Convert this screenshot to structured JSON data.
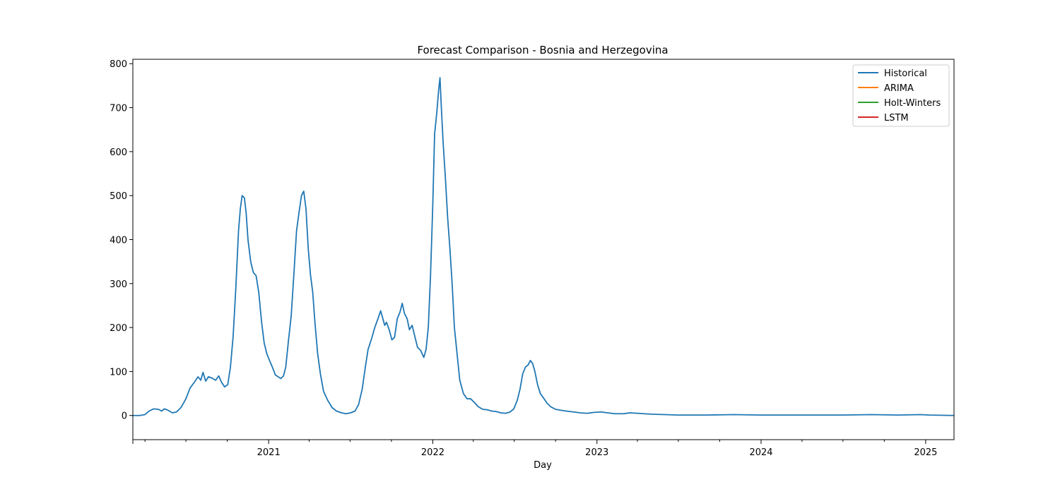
{
  "chart_data": {
    "type": "line",
    "title": "Forecast Comparison - Bosnia and Herzegovina",
    "xlabel": "Day",
    "ylabel": "",
    "x_range": [
      "2020-03-05",
      "2025-03-05"
    ],
    "ylim": [
      -55,
      810
    ],
    "x_ticks": [
      {
        "date": "2021-01-01",
        "label": "2021"
      },
      {
        "date": "2022-01-01",
        "label": "2022"
      },
      {
        "date": "2023-01-01",
        "label": "2023"
      },
      {
        "date": "2024-01-01",
        "label": "2024"
      },
      {
        "date": "2025-01-01",
        "label": "2025"
      }
    ],
    "y_ticks": [
      0,
      100,
      200,
      300,
      400,
      500,
      600,
      700,
      800
    ],
    "grid": false,
    "legend_position": "top-right",
    "series": [
      {
        "name": "Historical",
        "color": "#1f77b4",
        "points": [
          [
            "2020-03-05",
            0
          ],
          [
            "2020-03-20",
            0
          ],
          [
            "2020-04-01",
            2
          ],
          [
            "2020-04-10",
            10
          ],
          [
            "2020-04-20",
            15
          ],
          [
            "2020-05-01",
            14
          ],
          [
            "2020-05-08",
            10
          ],
          [
            "2020-05-14",
            15
          ],
          [
            "2020-05-20",
            13
          ],
          [
            "2020-06-01",
            6
          ],
          [
            "2020-06-10",
            8
          ],
          [
            "2020-06-20",
            18
          ],
          [
            "2020-07-01",
            38
          ],
          [
            "2020-07-10",
            62
          ],
          [
            "2020-07-20",
            76
          ],
          [
            "2020-07-28",
            88
          ],
          [
            "2020-08-03",
            80
          ],
          [
            "2020-08-08",
            98
          ],
          [
            "2020-08-14",
            78
          ],
          [
            "2020-08-20",
            88
          ],
          [
            "2020-08-28",
            85
          ],
          [
            "2020-09-05",
            80
          ],
          [
            "2020-09-12",
            90
          ],
          [
            "2020-09-18",
            76
          ],
          [
            "2020-09-25",
            65
          ],
          [
            "2020-10-02",
            70
          ],
          [
            "2020-10-08",
            110
          ],
          [
            "2020-10-14",
            180
          ],
          [
            "2020-10-20",
            290
          ],
          [
            "2020-10-26",
            420
          ],
          [
            "2020-10-30",
            470
          ],
          [
            "2020-11-03",
            500
          ],
          [
            "2020-11-08",
            495
          ],
          [
            "2020-11-12",
            460
          ],
          [
            "2020-11-16",
            400
          ],
          [
            "2020-11-22",
            350
          ],
          [
            "2020-11-28",
            325
          ],
          [
            "2020-12-04",
            318
          ],
          [
            "2020-12-10",
            280
          ],
          [
            "2020-12-16",
            215
          ],
          [
            "2020-12-22",
            165
          ],
          [
            "2020-12-28",
            140
          ],
          [
            "2021-01-03",
            125
          ],
          [
            "2021-01-10",
            108
          ],
          [
            "2021-01-16",
            92
          ],
          [
            "2021-01-22",
            88
          ],
          [
            "2021-01-28",
            84
          ],
          [
            "2021-02-03",
            90
          ],
          [
            "2021-02-08",
            110
          ],
          [
            "2021-02-14",
            170
          ],
          [
            "2021-02-20",
            225
          ],
          [
            "2021-02-26",
            320
          ],
          [
            "2021-03-04",
            420
          ],
          [
            "2021-03-10",
            465
          ],
          [
            "2021-03-15",
            500
          ],
          [
            "2021-03-20",
            510
          ],
          [
            "2021-03-25",
            470
          ],
          [
            "2021-03-30",
            380
          ],
          [
            "2021-04-04",
            320
          ],
          [
            "2021-04-09",
            280
          ],
          [
            "2021-04-14",
            210
          ],
          [
            "2021-04-20",
            140
          ],
          [
            "2021-04-26",
            95
          ],
          [
            "2021-05-03",
            55
          ],
          [
            "2021-05-12",
            35
          ],
          [
            "2021-05-22",
            18
          ],
          [
            "2021-06-01",
            10
          ],
          [
            "2021-06-12",
            6
          ],
          [
            "2021-06-22",
            4
          ],
          [
            "2021-07-02",
            6
          ],
          [
            "2021-07-12",
            10
          ],
          [
            "2021-07-20",
            25
          ],
          [
            "2021-07-28",
            60
          ],
          [
            "2021-08-04",
            110
          ],
          [
            "2021-08-10",
            150
          ],
          [
            "2021-08-18",
            175
          ],
          [
            "2021-08-25",
            200
          ],
          [
            "2021-09-01",
            220
          ],
          [
            "2021-09-07",
            238
          ],
          [
            "2021-09-12",
            220
          ],
          [
            "2021-09-16",
            205
          ],
          [
            "2021-09-20",
            212
          ],
          [
            "2021-09-26",
            195
          ],
          [
            "2021-10-02",
            172
          ],
          [
            "2021-10-08",
            178
          ],
          [
            "2021-10-14",
            220
          ],
          [
            "2021-10-20",
            235
          ],
          [
            "2021-10-25",
            255
          ],
          [
            "2021-10-30",
            232
          ],
          [
            "2021-11-05",
            220
          ],
          [
            "2021-11-10",
            195
          ],
          [
            "2021-11-16",
            205
          ],
          [
            "2021-11-22",
            180
          ],
          [
            "2021-11-28",
            155
          ],
          [
            "2021-12-05",
            148
          ],
          [
            "2021-12-12",
            132
          ],
          [
            "2021-12-17",
            150
          ],
          [
            "2021-12-22",
            200
          ],
          [
            "2021-12-27",
            320
          ],
          [
            "2022-01-01",
            480
          ],
          [
            "2022-01-05",
            640
          ],
          [
            "2022-01-10",
            690
          ],
          [
            "2022-01-14",
            740
          ],
          [
            "2022-01-17",
            768
          ],
          [
            "2022-01-20",
            700
          ],
          [
            "2022-01-24",
            620
          ],
          [
            "2022-01-29",
            540
          ],
          [
            "2022-02-03",
            450
          ],
          [
            "2022-02-08",
            380
          ],
          [
            "2022-02-13",
            300
          ],
          [
            "2022-02-18",
            200
          ],
          [
            "2022-02-24",
            140
          ],
          [
            "2022-03-02",
            80
          ],
          [
            "2022-03-10",
            50
          ],
          [
            "2022-03-18",
            38
          ],
          [
            "2022-03-26",
            38
          ],
          [
            "2022-04-03",
            30
          ],
          [
            "2022-04-12",
            20
          ],
          [
            "2022-04-22",
            14
          ],
          [
            "2022-05-02",
            13
          ],
          [
            "2022-05-12",
            10
          ],
          [
            "2022-05-22",
            9
          ],
          [
            "2022-06-01",
            6
          ],
          [
            "2022-06-12",
            5
          ],
          [
            "2022-06-22",
            8
          ],
          [
            "2022-06-30",
            15
          ],
          [
            "2022-07-08",
            35
          ],
          [
            "2022-07-14",
            60
          ],
          [
            "2022-07-20",
            95
          ],
          [
            "2022-07-26",
            110
          ],
          [
            "2022-08-01",
            115
          ],
          [
            "2022-08-06",
            125
          ],
          [
            "2022-08-11",
            118
          ],
          [
            "2022-08-16",
            100
          ],
          [
            "2022-08-22",
            70
          ],
          [
            "2022-08-28",
            50
          ],
          [
            "2022-09-04",
            40
          ],
          [
            "2022-09-12",
            28
          ],
          [
            "2022-09-20",
            20
          ],
          [
            "2022-10-01",
            14
          ],
          [
            "2022-10-12",
            12
          ],
          [
            "2022-10-25",
            10
          ],
          [
            "2022-11-10",
            8
          ],
          [
            "2022-11-25",
            6
          ],
          [
            "2022-12-10",
            5
          ],
          [
            "2022-12-25",
            7
          ],
          [
            "2023-01-10",
            8
          ],
          [
            "2023-01-25",
            6
          ],
          [
            "2023-02-10",
            4
          ],
          [
            "2023-03-01",
            4
          ],
          [
            "2023-03-15",
            6
          ],
          [
            "2023-04-01",
            5
          ],
          [
            "2023-05-01",
            3
          ],
          [
            "2023-06-01",
            2
          ],
          [
            "2023-07-01",
            1
          ],
          [
            "2023-09-01",
            1
          ],
          [
            "2023-11-01",
            2
          ],
          [
            "2024-01-01",
            1
          ],
          [
            "2024-04-01",
            1
          ],
          [
            "2024-07-01",
            1
          ],
          [
            "2024-09-01",
            2
          ],
          [
            "2024-11-01",
            1
          ],
          [
            "2024-12-20",
            2
          ],
          [
            "2025-01-10",
            1
          ],
          [
            "2025-03-05",
            0
          ]
        ]
      },
      {
        "name": "ARIMA",
        "color": "#ff7f0e",
        "points": []
      },
      {
        "name": "Holt-Winters",
        "color": "#2ca02c",
        "points": []
      },
      {
        "name": "LSTM",
        "color": "#d62728",
        "points": []
      }
    ]
  }
}
